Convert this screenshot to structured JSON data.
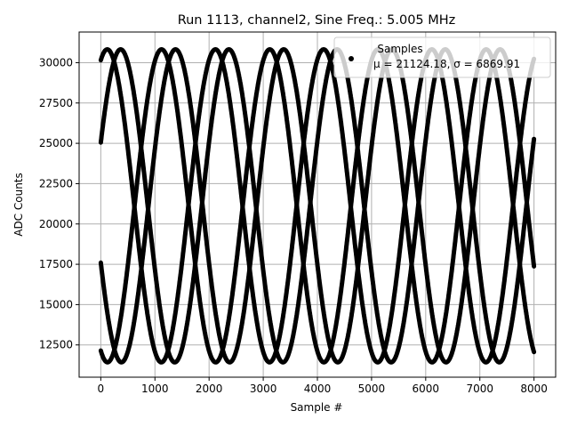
{
  "chart_data": {
    "type": "scatter",
    "title": "Run 1113, channel2, Sine Freq.: 5.005 MHz",
    "xlabel": "Sample #",
    "ylabel": "ADC Counts",
    "xlim": [
      -400,
      8400
    ],
    "ylim": [
      10500,
      31900
    ],
    "xticks": [
      0,
      1000,
      2000,
      3000,
      4000,
      5000,
      6000,
      7000,
      8000
    ],
    "xtick_labels": [
      "0",
      "1000",
      "2000",
      "3000",
      "4000",
      "5000",
      "6000",
      "7000",
      "8000"
    ],
    "yticks": [
      12500,
      15000,
      17500,
      20000,
      22500,
      25000,
      27500,
      30000
    ],
    "ytick_labels": [
      "12500",
      "15000",
      "17500",
      "20000",
      "22500",
      "25000",
      "27500",
      "30000"
    ],
    "grid": true,
    "legend": {
      "placement": "upper right",
      "title": "Samples",
      "entries": [
        {
          "marker": "dot",
          "label": "μ = 21124.18, σ = 6869.91",
          "symbol_label": "μ = 21124.18, σ = 6869.91"
        }
      ]
    },
    "series": [
      {
        "marker": "dot",
        "color": "#000000",
        "mean": 21124.18,
        "std": 6869.91,
        "sample_range": [
          0,
          8000
        ],
        "pattern": "sinusoid_alias",
        "amplitude": 9700,
        "offset": 21124.18,
        "period_samples": 1998,
        "phase_bands_start_values": [
          30150,
          25050,
          17600,
          12150
        ],
        "peak_value": 30850,
        "trough_value": 11400,
        "first_peak_sample": 550,
        "band_count": 4
      }
    ]
  },
  "colors": {
    "background": "#ffffff",
    "axes": "#000000",
    "grid": "#b0b0b0",
    "marker": "#000000",
    "legend_border": "#cccccc"
  }
}
